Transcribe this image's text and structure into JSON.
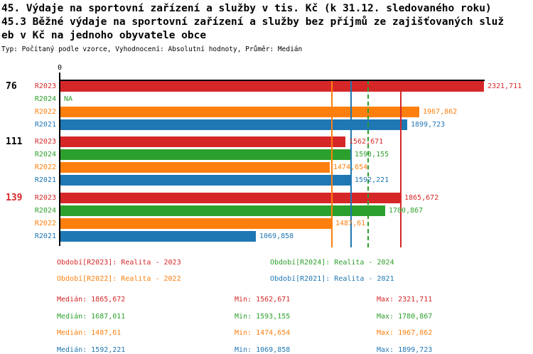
{
  "colors": {
    "R2023": "#d62728",
    "R2024": "#2ca02c",
    "R2022": "#ff7f0e",
    "R2021": "#1f77b4",
    "axis": "#000000",
    "group_label_default": "#000000",
    "group_label_highlight": "#d62728"
  },
  "title": {
    "line1": "45. Výdaje na sportovní zařízení a služby v tis. Kč (k 31.12. sledovaného roku)",
    "line2": "45.3 Běžné výdaje na sportovní zařízení a služby bez příjmů ze zajišťovaných služ",
    "line3": "eb v Kč na jednoho obyvatele obce",
    "meta": "Typ: Počítaný podle vzorce, Vyhodnocení: Absolutní hodnoty, Průměr: Medián"
  },
  "chart_data": {
    "type": "bar",
    "orientation": "horizontal",
    "x_axis": {
      "origin_label": "0",
      "xmax": 2321.711,
      "grid": false
    },
    "series_order": [
      "R2023",
      "R2024",
      "R2022",
      "R2021"
    ],
    "groups": [
      {
        "label": "76",
        "highlighted": false,
        "bars": [
          {
            "series": "R2023",
            "value": 2321.711,
            "display": "2321,711"
          },
          {
            "series": "R2024",
            "value": null,
            "display": "NA"
          },
          {
            "series": "R2022",
            "value": 1967.862,
            "display": "1967,862"
          },
          {
            "series": "R2021",
            "value": 1899.723,
            "display": "1899,723"
          }
        ]
      },
      {
        "label": "111",
        "highlighted": false,
        "bars": [
          {
            "series": "R2023",
            "value": 1562.671,
            "display": "1562,671"
          },
          {
            "series": "R2024",
            "value": 1593.155,
            "display": "1593,155"
          },
          {
            "series": "R2022",
            "value": 1474.654,
            "display": "1474,654"
          },
          {
            "series": "R2021",
            "value": 1592.221,
            "display": "1592,221"
          }
        ]
      },
      {
        "label": "139",
        "highlighted": true,
        "bars": [
          {
            "series": "R2023",
            "value": 1865.672,
            "display": "1865,672"
          },
          {
            "series": "R2024",
            "value": 1780.867,
            "display": "1780,867"
          },
          {
            "series": "R2022",
            "value": 1487.61,
            "display": "1487,61"
          },
          {
            "series": "R2021",
            "value": 1069.858,
            "display": "1069,858"
          }
        ]
      }
    ],
    "median_lines": [
      {
        "series": "R2023",
        "value": 1865.672,
        "style": "solid"
      },
      {
        "series": "R2024",
        "value": 1687.011,
        "style": "dashed"
      },
      {
        "series": "R2022",
        "value": 1487.61,
        "style": "solid"
      },
      {
        "series": "R2021",
        "value": 1592.221,
        "style": "solid"
      }
    ]
  },
  "legend": [
    {
      "series": "R2023",
      "label": "Období[R2023]: Realita - 2023"
    },
    {
      "series": "R2024",
      "label": "Období[R2024]: Realita - 2024"
    },
    {
      "series": "R2022",
      "label": "Období[R2022]: Realita - 2022"
    },
    {
      "series": "R2021",
      "label": "Období[R2021]: Realita - 2021"
    }
  ],
  "stats": [
    {
      "series": "R2023",
      "median": "Medián: 1865,672",
      "min": "Min: 1562,671",
      "max": "Max: 2321,711"
    },
    {
      "series": "R2024",
      "median": "Medián: 1687,011",
      "min": "Min: 1593,155",
      "max": "Max: 1780,867"
    },
    {
      "series": "R2022",
      "median": "Medián: 1487,61",
      "min": "Min: 1474,654",
      "max": "Max: 1967,862"
    },
    {
      "series": "R2021",
      "median": "Medián: 1592,221",
      "min": "Min: 1069,858",
      "max": "Max: 1899,723"
    }
  ]
}
